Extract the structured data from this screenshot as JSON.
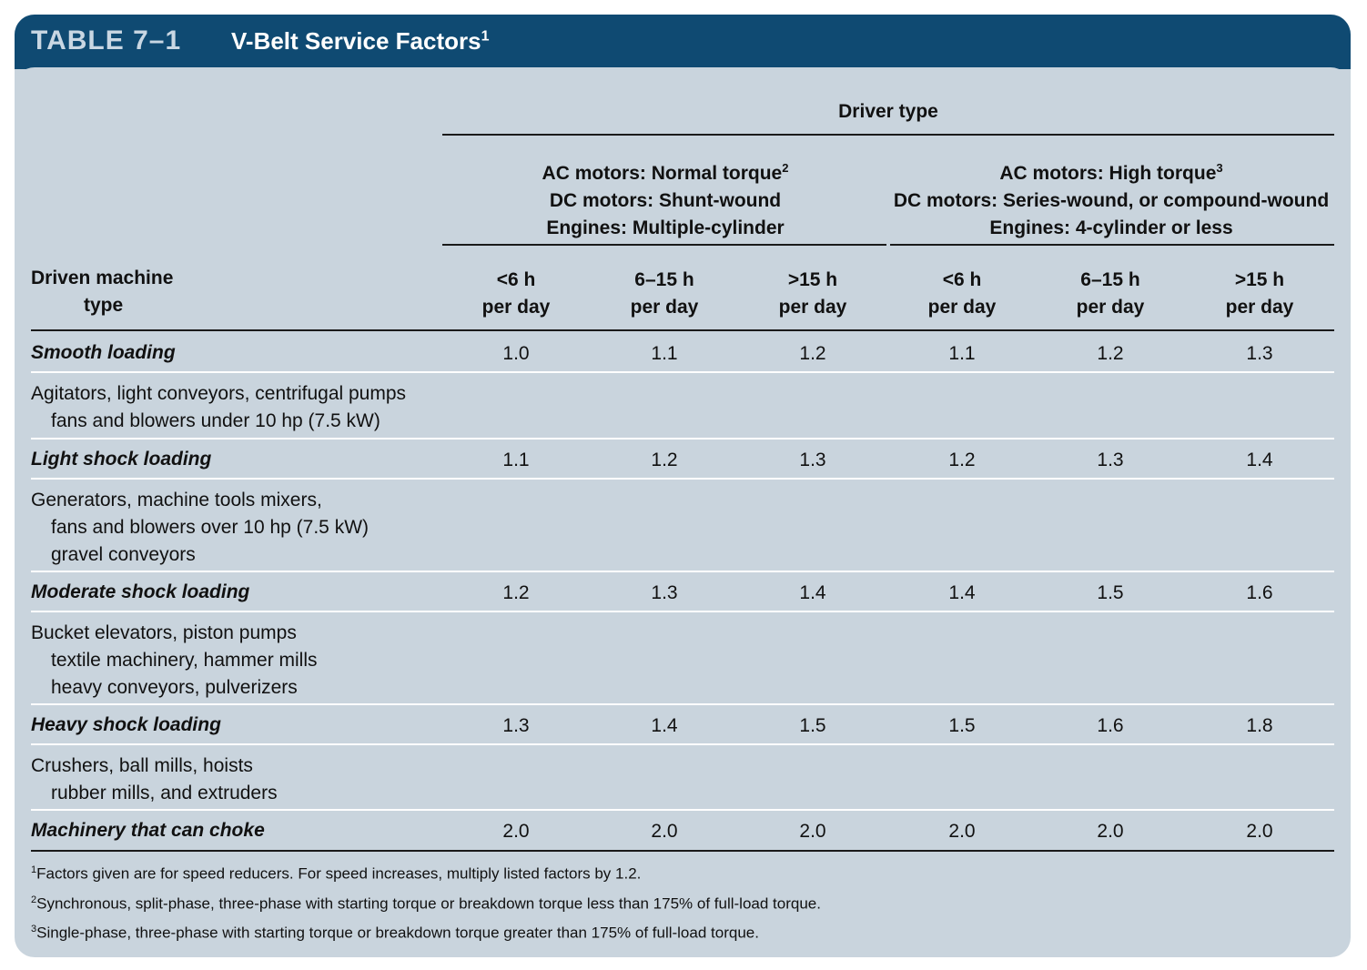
{
  "title": {
    "table_no": "TABLE 7–1",
    "name": "V-Belt Service Factors",
    "name_sup": "1"
  },
  "header": {
    "driver_type": "Driver type",
    "group1": {
      "line1": "AC motors: Normal torque",
      "line1_sup": "2",
      "line2": "DC motors: Shunt-wound",
      "line3": "Engines: Multiple-cylinder"
    },
    "group2": {
      "line1": "AC motors: High torque",
      "line1_sup": "3",
      "line2": "DC motors: Series-wound, or compound-wound",
      "line3": "Engines: 4-cylinder or less"
    },
    "driven_machine": {
      "line1": "Driven machine",
      "line2": "type"
    },
    "columns": [
      {
        "line1": "<6 h",
        "line2": "per day"
      },
      {
        "line1": "6–15 h",
        "line2": "per day"
      },
      {
        "line1": ">15 h",
        "line2": "per day"
      },
      {
        "line1": "<6 h",
        "line2": "per day"
      },
      {
        "line1": "6–15 h",
        "line2": "per day"
      },
      {
        "line1": ">15 h",
        "line2": "per day"
      }
    ]
  },
  "rows": [
    {
      "category": "Smooth loading",
      "values": [
        "1.0",
        "1.1",
        "1.2",
        "1.1",
        "1.2",
        "1.3"
      ],
      "description": [
        "Agitators, light conveyors, centrifugal pumps",
        "fans and blowers under 10 hp (7.5 kW)"
      ]
    },
    {
      "category": "Light shock loading",
      "values": [
        "1.1",
        "1.2",
        "1.3",
        "1.2",
        "1.3",
        "1.4"
      ],
      "description": [
        "Generators, machine tools mixers,",
        "fans and blowers over 10 hp (7.5 kW)",
        "gravel conveyors"
      ]
    },
    {
      "category": "Moderate shock loading",
      "values": [
        "1.2",
        "1.3",
        "1.4",
        "1.4",
        "1.5",
        "1.6"
      ],
      "description": [
        "Bucket elevators, piston pumps",
        "textile machinery, hammer mills",
        "heavy conveyors, pulverizers"
      ]
    },
    {
      "category": "Heavy shock loading",
      "values": [
        "1.3",
        "1.4",
        "1.5",
        "1.5",
        "1.6",
        "1.8"
      ],
      "description": [
        "Crushers, ball mills, hoists",
        "rubber mills, and extruders"
      ]
    },
    {
      "category": "Machinery that can choke",
      "values": [
        "2.0",
        "2.0",
        "2.0",
        "2.0",
        "2.0",
        "2.0"
      ],
      "description": []
    }
  ],
  "footnotes": [
    {
      "mark": "1",
      "text": "Factors given are for speed reducers. For speed increases, multiply listed factors by 1.2."
    },
    {
      "mark": "2",
      "text": "Synchronous, split-phase, three-phase with starting torque or breakdown torque less than 175% of full-load torque."
    },
    {
      "mark": "3",
      "text": "Single-phase, three-phase with starting torque or breakdown torque greater than 175% of full-load torque."
    }
  ],
  "colors": {
    "title_bar": "#0f4a72",
    "panel": "#c9d4dd",
    "rule": "#1a1a1a"
  }
}
